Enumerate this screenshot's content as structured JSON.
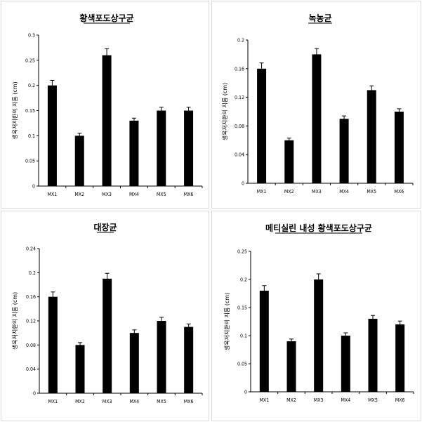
{
  "chart_data": [
    {
      "type": "bar",
      "title": "황색포도상구균",
      "ylabel": "생육저지환의 지름 (cm)",
      "xlabel": "",
      "categories": [
        "MX1",
        "MX2",
        "MX3",
        "MX4",
        "MX5",
        "MX6"
      ],
      "values": [
        0.2,
        0.1,
        0.26,
        0.13,
        0.15,
        0.15
      ],
      "errors": [
        0.01,
        0.005,
        0.013,
        0.005,
        0.007,
        0.007
      ],
      "yticks": [
        "0",
        "0.05",
        "0.1",
        "0.15",
        "0.2",
        "0.25",
        "0.3"
      ],
      "ylim": [
        0,
        0.3
      ],
      "bar_color": "#000000",
      "grid": false
    },
    {
      "type": "bar",
      "title": "녹농균",
      "ylabel": "생육저지환의 지름 (cm)",
      "xlabel": "",
      "categories": [
        "MX1",
        "MX2",
        "MX3",
        "MX4",
        "MX5",
        "MX6"
      ],
      "values": [
        0.16,
        0.06,
        0.18,
        0.09,
        0.13,
        0.1
      ],
      "errors": [
        0.008,
        0.003,
        0.008,
        0.004,
        0.006,
        0.004
      ],
      "yticks": [
        "0",
        "0.04",
        "0.08",
        "0.12",
        "0.16",
        "0.2"
      ],
      "ylim": [
        0,
        0.2
      ],
      "bar_color": "#000000",
      "grid": false
    },
    {
      "type": "bar",
      "title": "대장균",
      "ylabel": "생육저지환의 지름 (cm)",
      "xlabel": "",
      "categories": [
        "MX1",
        "MX2",
        "MX3",
        "MX4",
        "MX5",
        "MX6"
      ],
      "values": [
        0.16,
        0.08,
        0.19,
        0.1,
        0.12,
        0.11
      ],
      "errors": [
        0.008,
        0.004,
        0.009,
        0.005,
        0.006,
        0.005
      ],
      "yticks": [
        "0",
        "0.04",
        "0.08",
        "0.12",
        "0.16",
        "0.2",
        "0.24"
      ],
      "ylim": [
        0,
        0.24
      ],
      "bar_color": "#000000",
      "grid": false
    },
    {
      "type": "bar",
      "title": "메티실린 내성 황색포도상구균",
      "ylabel": "생육저지환의 지름 (cm)",
      "xlabel": "",
      "categories": [
        "MX1",
        "MX2",
        "MX3",
        "MX4",
        "MX5",
        "MX6"
      ],
      "values": [
        0.18,
        0.09,
        0.2,
        0.1,
        0.13,
        0.12
      ],
      "errors": [
        0.009,
        0.004,
        0.01,
        0.005,
        0.006,
        0.006
      ],
      "yticks": [
        "0",
        "0.05",
        "0.1",
        "0.15",
        "0.2",
        "0.25"
      ],
      "ylim": [
        0,
        0.25
      ],
      "bar_color": "#000000",
      "grid": false
    }
  ]
}
